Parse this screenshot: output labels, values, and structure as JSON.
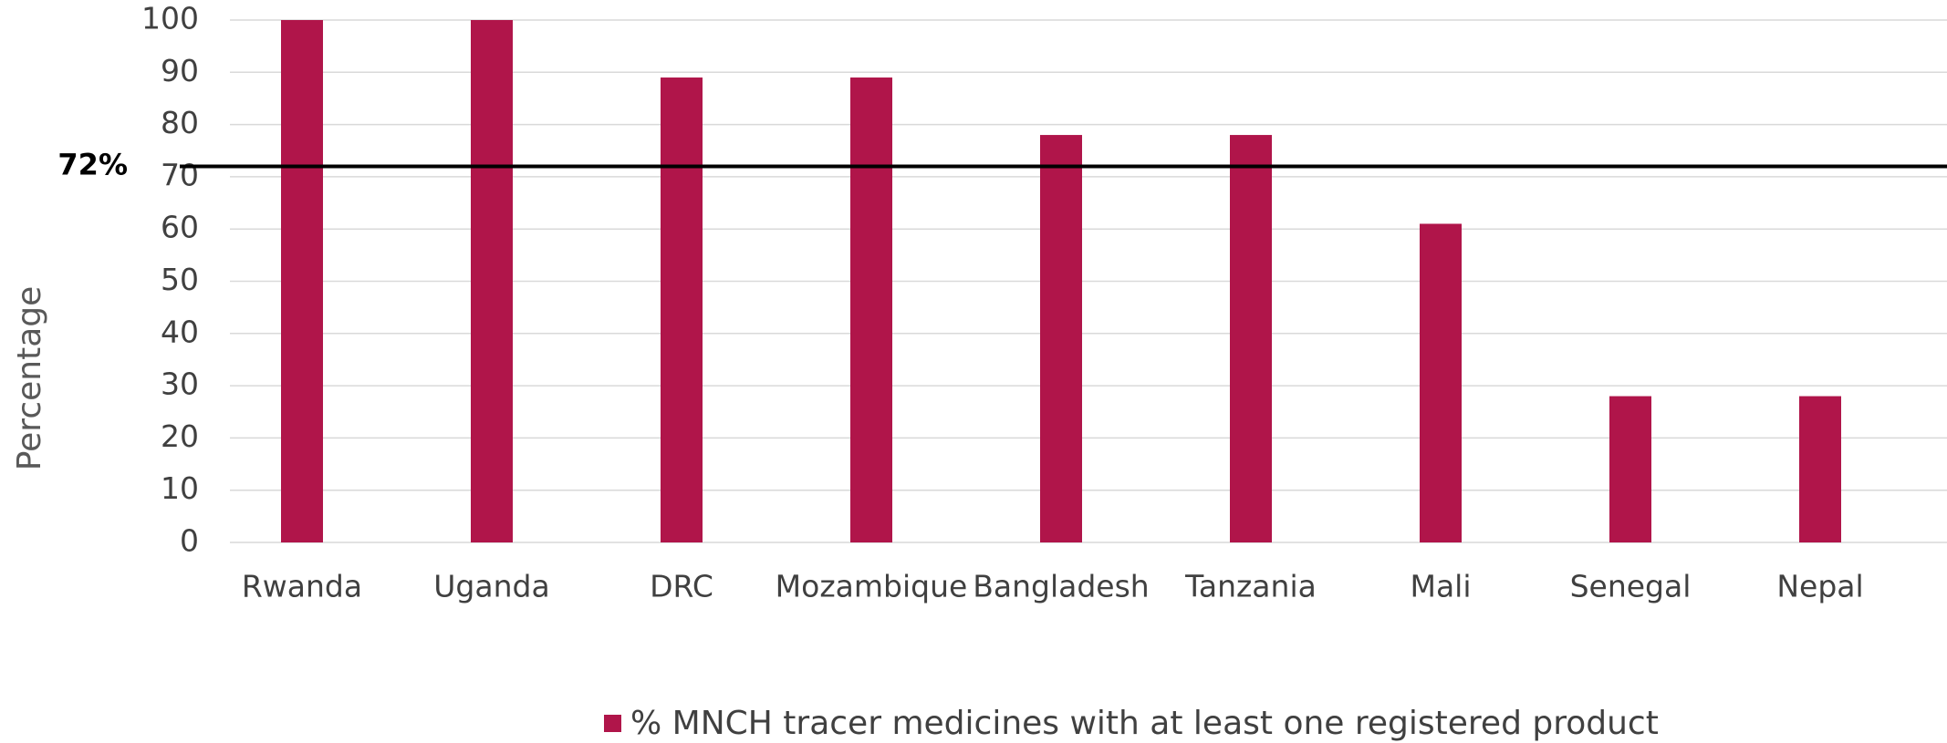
{
  "chart_data": {
    "type": "bar",
    "y_label": "Percentage",
    "categories": [
      "Rwanda",
      "Uganda",
      "DRC",
      "Mozambique",
      "Bangladesh",
      "Tanzania",
      "Mali",
      "Senegal",
      "Nepal"
    ],
    "series": [
      {
        "name": "% MNCH tracer medicines with at least one registered product",
        "color": "#b0154a",
        "values": [
          100,
          100,
          89,
          89,
          78,
          78,
          61,
          28,
          28
        ]
      }
    ],
    "ylim": [
      0,
      100
    ],
    "yticks": [
      0,
      10,
      20,
      30,
      40,
      50,
      60,
      70,
      80,
      90,
      100
    ],
    "grid": true,
    "reference_line": {
      "value": 72,
      "label": "72%"
    },
    "legend": "bottom"
  }
}
